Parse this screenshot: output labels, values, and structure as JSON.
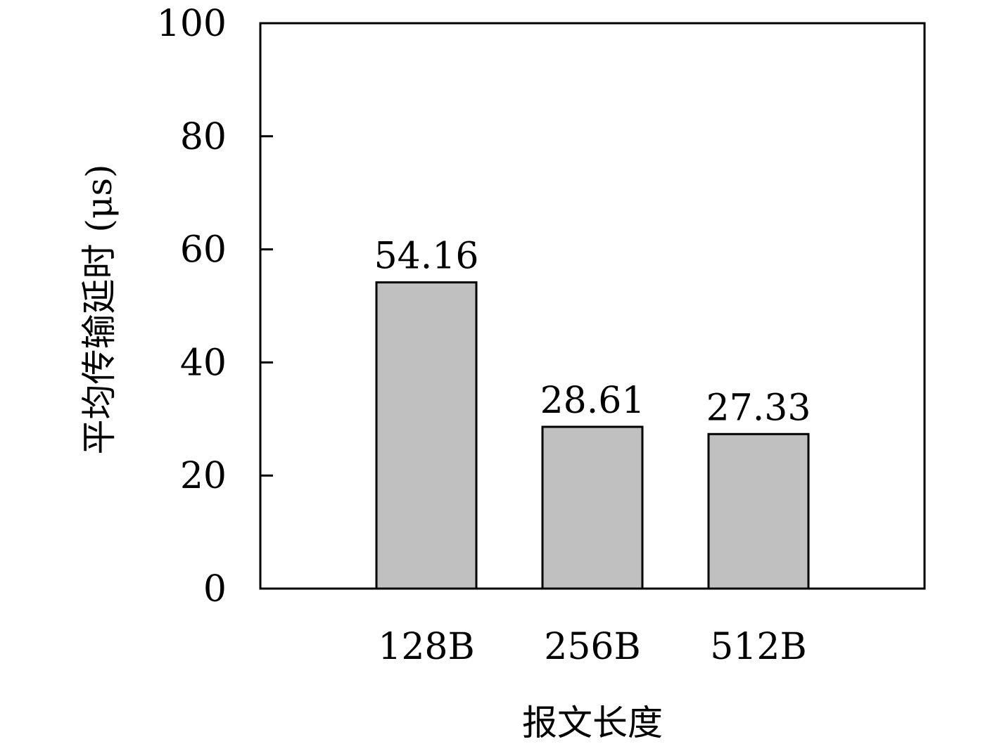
{
  "chart_data": {
    "type": "bar",
    "title": "",
    "xlabel": "报文长度",
    "ylabel": "平均传输延时 (μs)",
    "categories": [
      "128B",
      "256B",
      "512B"
    ],
    "values": [
      54.16,
      28.61,
      27.33
    ],
    "data_labels": [
      "54.16",
      "28.61",
      "27.33"
    ],
    "ylim": [
      0,
      100
    ],
    "yticks": [
      0,
      20,
      40,
      60,
      80,
      100
    ],
    "ytick_labels": [
      "0",
      "20",
      "40",
      "60",
      "80",
      "100"
    ],
    "grid": false,
    "legend": "none",
    "colors": {
      "bar_fill": "#c0c0c0",
      "bar_edge": "#000000",
      "axes": "#000000"
    }
  }
}
